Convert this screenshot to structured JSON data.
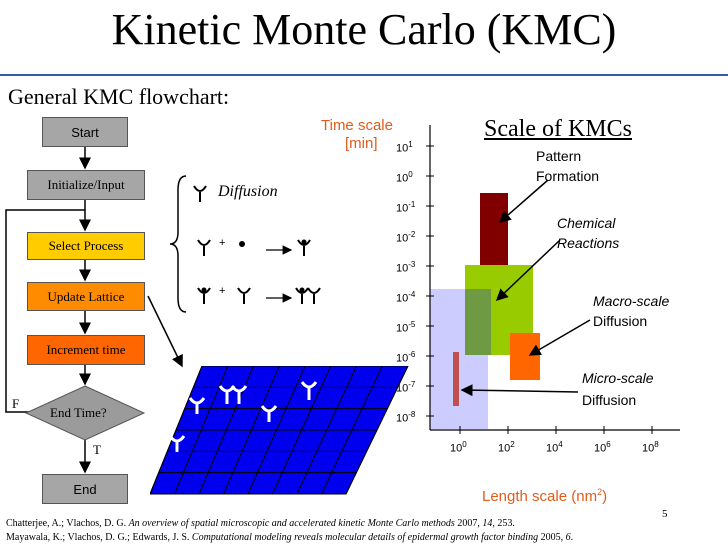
{
  "title": "Kinetic Monte Carlo (KMC)",
  "subtitle": "General KMC flowchart:",
  "flowchart": {
    "start": "Start",
    "init": "Initialize/Input",
    "select": "Select Process",
    "update": "Update Lattice",
    "increment": "Increment time",
    "end_time": "End Time?",
    "end": "End",
    "false_label": "F",
    "true_label": "T"
  },
  "processes": {
    "diffusion": "Diffusion",
    "plus_1": "+",
    "plus_2": "+"
  },
  "scale_chart": {
    "title": "Scale of KMCs",
    "y_label_1": "Time scale",
    "y_label_2": "[min]",
    "x_label": "Length scale (nm",
    "x_label_sup": "2",
    "x_label_end": ")",
    "y_ticks": [
      "1",
      "0",
      "-1",
      "-2",
      "-3",
      "-4",
      "-5",
      "-6",
      "-7",
      "-8"
    ],
    "x_ticks": [
      "0",
      "2",
      "4",
      "6",
      "8"
    ],
    "tick_base": "10",
    "annotations": {
      "pattern_1": "Pattern",
      "pattern_2": "Formation",
      "chemical_1": "Chemical",
      "chemical_2": "Reactions",
      "macro_1": "Macro-scale",
      "macro_2": "Diffusion",
      "micro_1": "Micro-scale",
      "micro_2": "Diffusion"
    },
    "colors": {
      "pattern": "#800000",
      "chemical": "#99cc00",
      "macro": "#ff6600",
      "micro_region": "#ccccff",
      "micro_bar": "#c0504d"
    }
  },
  "page_number": "5",
  "citations": [
    {
      "authors": "Chatterjee, A.; Vlachos, D. G.",
      "title": "An overview of spatial microscopic and accelerated kinetic Monte Carlo methods",
      "year": "2007,",
      "vol": "14",
      "pages": ", 253."
    },
    {
      "authors": "Mayawala, K.; Vlachos, D. G.; Edwards, J. S.",
      "title": "Computational modeling reveals molecular details of epidermal growth factor binding",
      "year": "2005,",
      "vol": "6",
      "pages": "."
    }
  ]
}
